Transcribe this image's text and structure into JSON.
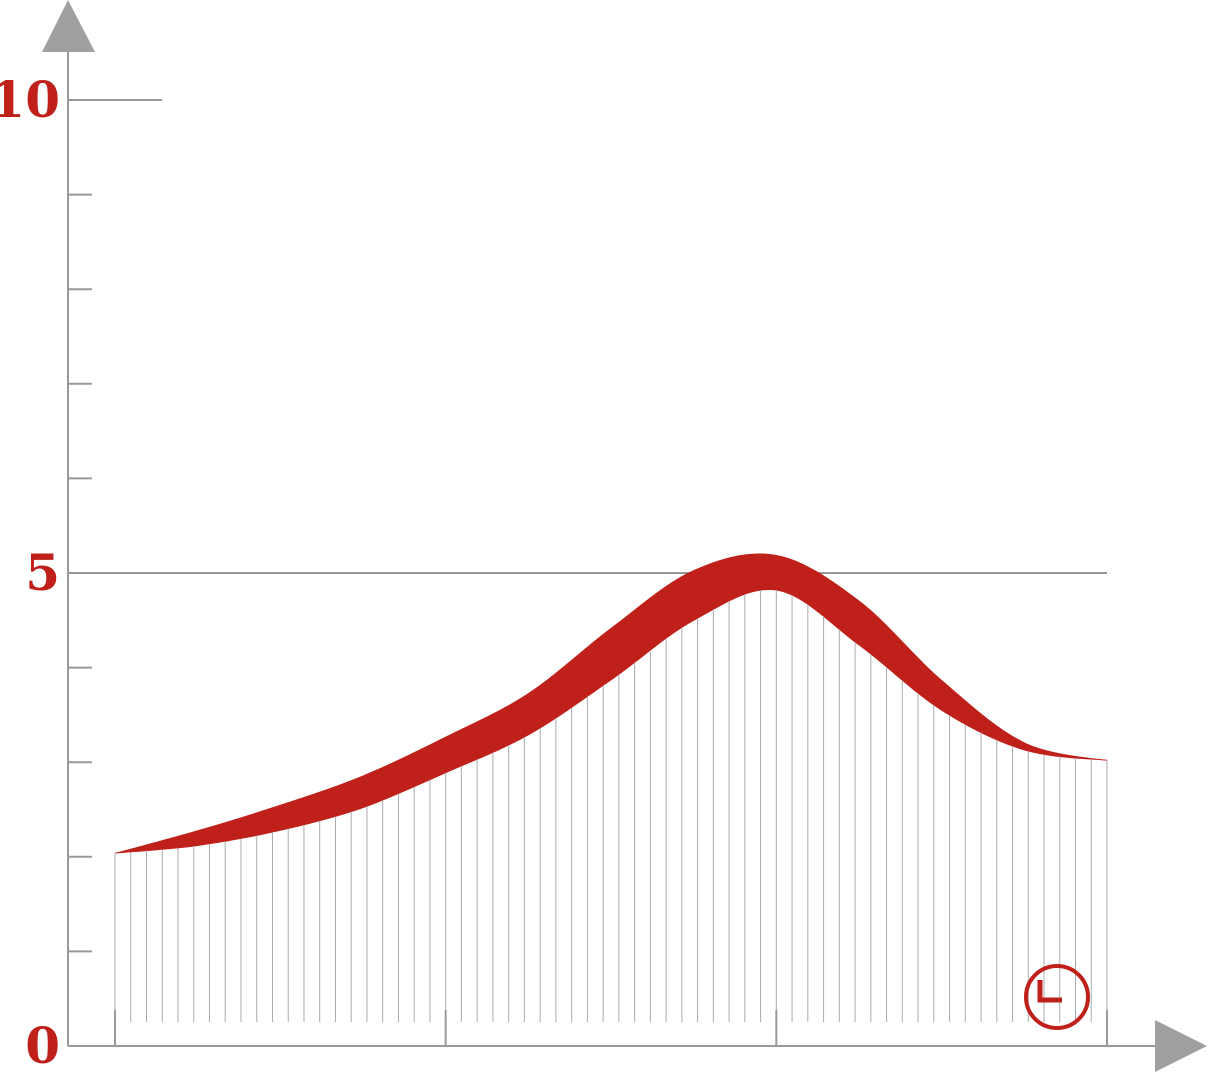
{
  "chart_data": {
    "type": "band",
    "x": [
      0,
      0.25,
      0.5,
      0.75,
      1,
      1.25,
      1.5,
      1.75,
      2,
      2.25,
      2.5,
      2.75,
      3
    ],
    "series": [
      {
        "color": "#c0201a",
        "values": [
          2.04,
          2.12,
          2.28,
          2.52,
          2.89,
          3.29,
          3.87,
          4.5,
          4.82,
          4.24,
          3.55,
          3.13,
          3.02
        ]
      },
      {
        "color": "#c0201a",
        "values": [
          2.04,
          2.28,
          2.55,
          2.86,
          3.27,
          3.73,
          4.42,
          5.03,
          5.19,
          4.71,
          3.87,
          3.21,
          3.02
        ]
      }
    ],
    "xlim": [
      0,
      3
    ],
    "xticks": [
      0,
      1,
      2,
      3
    ],
    "ylim": [
      0,
      10
    ],
    "yticks": [
      0,
      5,
      10
    ],
    "yminorticks": [
      1,
      2,
      3,
      4,
      6,
      7,
      8,
      9
    ]
  }
}
